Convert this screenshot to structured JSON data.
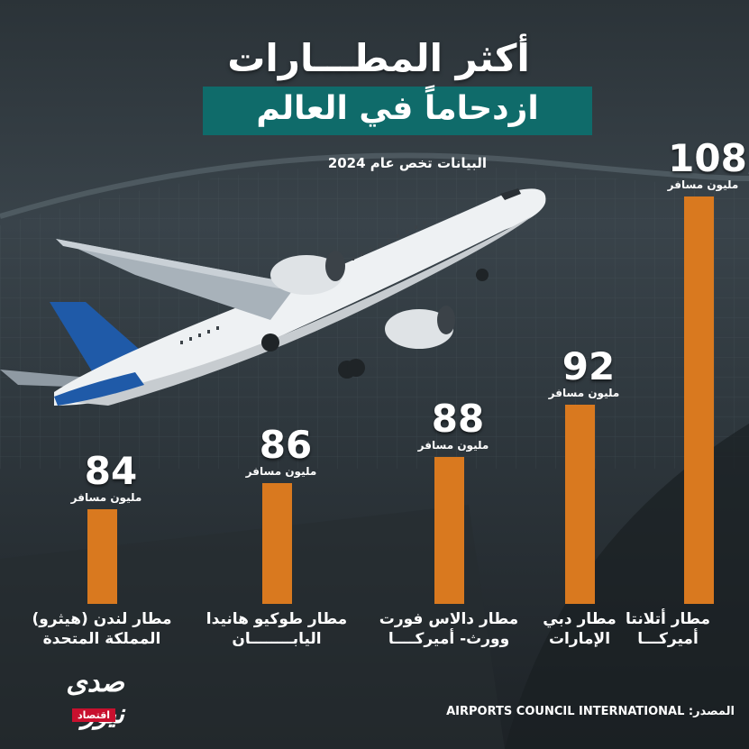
{
  "header": {
    "title_line1": "أكثر المطـــارات",
    "title_line2": "ازدحاماً في العالم",
    "subtitle": "البيانات تخص عام 2024"
  },
  "colors": {
    "bar": "#d9791f",
    "banner": "#0f6b6a",
    "logo_accent": "#c8102e"
  },
  "chart_data": {
    "type": "bar",
    "title": "أكثر المطـــارات ازدحاماً في العالم",
    "subtitle": "البيانات تخص عام 2024",
    "categories": [
      "مطار لندن (هيثرو) المملكة المتحدة",
      "مطار طوكيو هانيدا اليابــــــــان",
      "مطار دالاس فورت وورث- أميركــــا",
      "مطار دبي الإمارات",
      "مطار أتلانتا أميركـــا"
    ],
    "category_lines": [
      [
        "مطار لندن (هيثرو)",
        "المملكة المتحدة"
      ],
      [
        "مطار طوكيو هانيدا",
        "اليابــــــــان"
      ],
      [
        "مطار دالاس فورت",
        "وورث- أميركــــا"
      ],
      [
        "مطار دبي",
        "الإمارات"
      ],
      [
        "مطار أتلانتا",
        "أميركـــا"
      ]
    ],
    "values": [
      84,
      86,
      88,
      92,
      108
    ],
    "unit": "مليون مسافر",
    "ylim": [
      0,
      110
    ],
    "grid": false
  },
  "footer": {
    "source": "المصدر: AIRPORTS COUNCIL INTERNATIONAL",
    "logo_text": "صدى نيوز",
    "logo_sub": "اقتصاد"
  }
}
